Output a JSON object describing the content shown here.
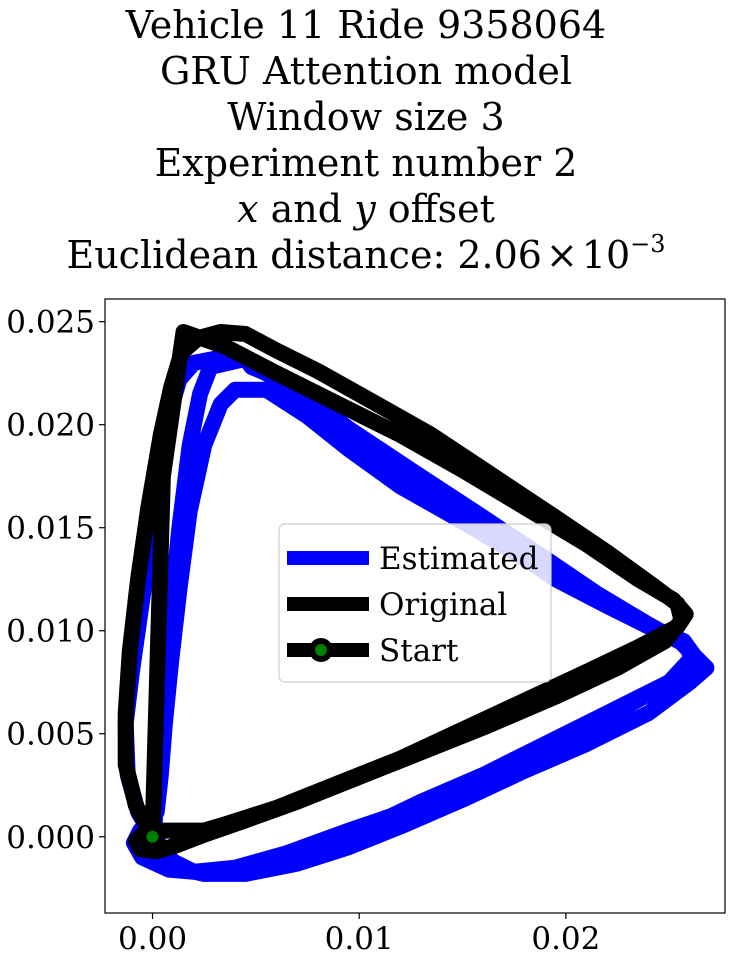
{
  "chart_data": {
    "type": "line",
    "title_lines": [
      "Vehicle 11 Ride 9358064",
      "GRU Attention model",
      "Window size 3",
      "Experiment number 2"
    ],
    "offset_line": {
      "var_x": "x",
      "conj": " and ",
      "var_y": "y",
      "tail": " offset"
    },
    "distance_line": {
      "prefix": "Euclidean distance: ",
      "mantissa": "2.06",
      "times": "×",
      "base": "10",
      "exponent": "−3"
    },
    "xlim": [
      -0.0023,
      0.0277
    ],
    "ylim": [
      -0.0037,
      0.0261
    ],
    "x_ticks": [
      0.0,
      0.01,
      0.02
    ],
    "x_tick_labels": [
      "0.00",
      "0.01",
      "0.02"
    ],
    "y_ticks": [
      0.0,
      0.005,
      0.01,
      0.015,
      0.02,
      0.025
    ],
    "y_tick_labels": [
      "0.000",
      "0.005",
      "0.010",
      "0.015",
      "0.020",
      "0.025"
    ],
    "grid": false,
    "legend_position": "center",
    "series": [
      {
        "name": "Estimated",
        "color": "#0000ff",
        "line_width": 16,
        "x": [
          0.0,
          -0.0007,
          -0.0012,
          -0.0013,
          -0.001,
          -0.0005,
          0.0,
          0.0004,
          0.0008,
          0.0013,
          0.002,
          0.003,
          0.0045,
          0.0048,
          0.0055,
          0.0075,
          0.0095,
          0.0125,
          0.016,
          0.019,
          0.0215,
          0.024,
          0.0258,
          0.0262,
          0.025,
          0.022,
          0.019,
          0.016,
          0.013,
          0.0095,
          0.0065,
          0.004,
          0.002,
          0.0008,
          -0.0005,
          -0.0009,
          -0.0006,
          0.0002,
          0.0004,
          0.0006,
          0.0009,
          0.0013,
          0.0018,
          0.0025,
          0.0033,
          0.004,
          0.0055,
          0.0075,
          0.0095,
          0.012,
          0.015,
          0.018,
          0.021,
          0.0235,
          0.0255,
          0.0268,
          0.026,
          0.024,
          0.021,
          0.018,
          0.015,
          0.012,
          0.0095,
          0.007,
          0.0045,
          0.0025,
          0.0012,
          0.0004,
          0.0001,
          0.0002,
          0.0005,
          0.0009,
          0.0013,
          0.0018,
          0.0023,
          0.0028,
          0.0045,
          0.0065,
          0.0085,
          0.011,
          0.014,
          0.017,
          0.0195,
          0.022,
          0.024,
          0.0257,
          0.0262,
          0.025,
          0.022,
          0.019,
          0.016,
          0.013,
          0.0105,
          0.008,
          0.0055,
          0.0035,
          0.002,
          0.001,
          0.0
        ],
        "y": [
          0.0,
          0.0012,
          0.003,
          0.0055,
          0.008,
          0.0115,
          0.015,
          0.0182,
          0.0205,
          0.0222,
          0.023,
          0.0232,
          0.0232,
          0.0228,
          0.0225,
          0.0213,
          0.0198,
          0.0178,
          0.0155,
          0.0135,
          0.0118,
          0.0103,
          0.0093,
          0.0085,
          0.0075,
          0.0058,
          0.0043,
          0.0028,
          0.0015,
          0.0003,
          -0.0008,
          -0.0015,
          -0.0017,
          -0.0016,
          -0.001,
          -0.0003,
          0.0003,
          0.0012,
          0.003,
          0.0055,
          0.0085,
          0.012,
          0.0158,
          0.019,
          0.021,
          0.0217,
          0.0217,
          0.0204,
          0.0188,
          0.017,
          0.0153,
          0.0135,
          0.0118,
          0.0105,
          0.0095,
          0.0082,
          0.0075,
          0.006,
          0.0045,
          0.0032,
          0.0018,
          0.0005,
          -0.0005,
          -0.0013,
          -0.0018,
          -0.0018,
          -0.0015,
          -0.0008,
          0.0005,
          0.003,
          0.0065,
          0.011,
          0.015,
          0.019,
          0.0215,
          0.0228,
          0.0232,
          0.0222,
          0.0205,
          0.0185,
          0.0162,
          0.0142,
          0.0125,
          0.0112,
          0.0102,
          0.0095,
          0.0088,
          0.0075,
          0.006,
          0.0045,
          0.003,
          0.0017,
          0.0005,
          -0.0006,
          -0.0013,
          -0.0017,
          -0.0017,
          -0.0012,
          0.0
        ]
      },
      {
        "name": "Original",
        "color": "#000000",
        "line_width": 16,
        "x": [
          0.0,
          -0.0008,
          -0.0013,
          -0.0013,
          -0.0011,
          -0.0007,
          -0.0002,
          0.0004,
          0.0009,
          0.0014,
          0.0022,
          0.0033,
          0.0045,
          0.006,
          0.008,
          0.0105,
          0.0135,
          0.0165,
          0.0195,
          0.022,
          0.0242,
          0.0254,
          0.0256,
          0.0248,
          0.0225,
          0.0195,
          0.016,
          0.0125,
          0.0095,
          0.007,
          0.0045,
          0.0025,
          0.0012,
          0.0002,
          -0.0006,
          -0.0008,
          -0.0004,
          0.0005,
          0.0015,
          0.0022,
          0.0025,
          0.0035,
          0.006,
          0.009,
          0.012,
          0.015,
          0.018,
          0.021,
          0.0235,
          0.0254,
          0.0258,
          0.0252,
          0.0235,
          0.021,
          0.018,
          0.015,
          0.012,
          0.009,
          0.006,
          0.0035,
          0.0015,
          0.0005,
          0.0
        ],
        "y": [
          0.0,
          0.0015,
          0.0035,
          0.006,
          0.009,
          0.0125,
          0.016,
          0.0195,
          0.0218,
          0.0235,
          0.0242,
          0.0245,
          0.0244,
          0.0236,
          0.0226,
          0.0212,
          0.0195,
          0.0175,
          0.0155,
          0.0138,
          0.0122,
          0.0113,
          0.0105,
          0.0095,
          0.0082,
          0.0068,
          0.0053,
          0.0039,
          0.0027,
          0.0017,
          0.0008,
          0.0001,
          -0.0004,
          -0.0007,
          -0.0006,
          -0.0002,
          0.0002,
          0.0003,
          0.0003,
          0.0003,
          0.0003,
          0.0006,
          0.0014,
          0.0026,
          0.0038,
          0.0052,
          0.0066,
          0.008,
          0.0092,
          0.0102,
          0.0108,
          0.0115,
          0.0125,
          0.0142,
          0.016,
          0.0178,
          0.0195,
          0.021,
          0.0225,
          0.0238,
          0.0245,
          0.0175,
          0.0
        ]
      }
    ],
    "start_marker": {
      "name": "Start",
      "x": 0.0,
      "y": 0.0,
      "marker_edge_color": "#000000",
      "marker_face_color": "#008000"
    }
  }
}
